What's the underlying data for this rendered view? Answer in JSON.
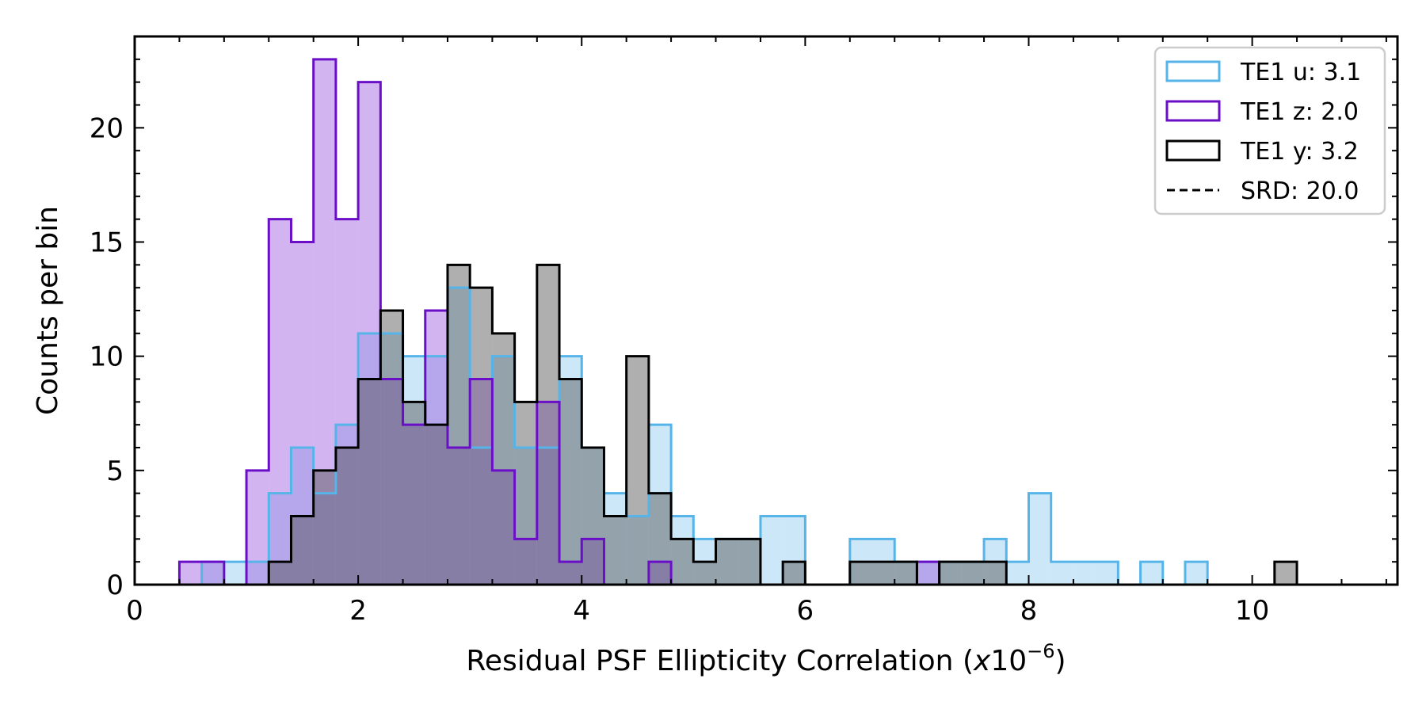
{
  "chart_data": {
    "type": "histogram",
    "xlabel": "Residual PSF Ellipticity Correlation (",
    "xlabel_var": "x",
    "xlabel_base": "10",
    "xlabel_exp": "−6",
    "xlabel_close": ")",
    "ylabel": "Counts per bin",
    "xlim": [
      0,
      11.3
    ],
    "ylim": [
      0,
      24
    ],
    "x_ticks": [
      0,
      2,
      4,
      6,
      8,
      10
    ],
    "x_tick_labels": [
      "0",
      "2",
      "4",
      "6",
      "8",
      "10"
    ],
    "y_ticks": [
      0,
      5,
      10,
      15,
      20
    ],
    "y_tick_labels": [
      "0",
      "5",
      "10",
      "15",
      "20"
    ],
    "grid": false,
    "legend_position": "top-right",
    "bin_start": 0.4,
    "bin_width": 0.2,
    "series": [
      {
        "name": "TE1 u: 3.1",
        "color": "#56b4e9",
        "fill": "#56b4e9",
        "fill_opacity": 0.3,
        "counts": [
          0,
          1,
          1,
          1,
          4,
          6,
          4,
          7,
          11,
          11,
          10,
          10,
          13,
          6,
          10,
          6,
          6,
          10,
          6,
          4,
          3,
          7,
          3,
          2,
          2,
          2,
          3,
          3,
          0,
          0,
          2,
          2,
          1,
          1,
          1,
          1,
          2,
          1,
          4,
          1,
          1,
          1,
          0,
          1,
          0,
          1,
          0,
          0,
          0,
          0
        ]
      },
      {
        "name": "TE1 z: 2.0",
        "color": "#6a0fc7",
        "fill": "#9b59e0",
        "fill_opacity": 0.45,
        "counts": [
          1,
          1,
          0,
          5,
          16,
          15,
          23,
          16,
          22,
          9,
          7,
          12,
          6,
          9,
          5,
          2,
          8,
          1,
          2,
          0,
          0,
          1,
          0,
          0,
          0,
          0,
          0,
          0,
          0,
          0,
          0,
          0,
          0,
          1,
          0,
          0,
          0,
          0,
          0,
          0,
          0,
          0,
          0,
          0,
          0,
          0,
          0,
          0,
          0,
          0
        ]
      },
      {
        "name": "TE1 y: 3.2",
        "color": "#000000",
        "fill": "#4d4d4d",
        "fill_opacity": 0.45,
        "counts": [
          0,
          0,
          0,
          0,
          1,
          3,
          5,
          6,
          9,
          12,
          8,
          7,
          14,
          13,
          11,
          8,
          14,
          9,
          6,
          3,
          10,
          4,
          2,
          1,
          2,
          2,
          0,
          1,
          0,
          0,
          1,
          1,
          1,
          0,
          1,
          1,
          1,
          0,
          0,
          0,
          0,
          0,
          0,
          0,
          0,
          0,
          0,
          0,
          0,
          1
        ]
      }
    ],
    "reference": {
      "name": "SRD: 20.0",
      "color": "#000000",
      "style": "dashed"
    }
  }
}
